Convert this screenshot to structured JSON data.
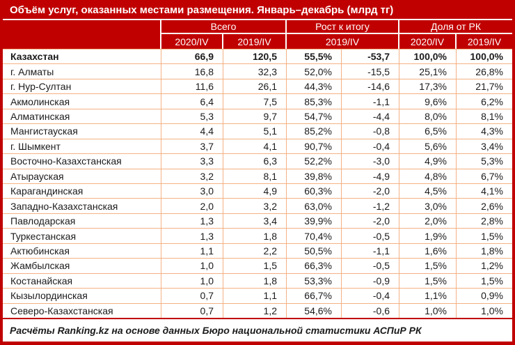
{
  "title": "Объём услуг, оказанных местами размещения. Январь–декабрь (млрд тг)",
  "header": {
    "corner": "",
    "groups": [
      {
        "label": "Всего",
        "sub": [
          "2020/IV",
          "2019/IV"
        ]
      },
      {
        "label": "Рост к итогу",
        "sub": [
          "2019/IV"
        ]
      },
      {
        "label": "Доля от РК",
        "sub": [
          "2020/IV",
          "2019/IV"
        ]
      }
    ]
  },
  "chart_data": {
    "type": "table",
    "title": "Объём услуг, оказанных местами размещения. Январь–декабрь (млрд тг)",
    "columns": [
      "Регион",
      "Всего 2020/IV",
      "Всего 2019/IV",
      "Рост к итогу 2019/IV, %",
      "Рост к итогу 2019/IV, млрд тг",
      "Доля от РК 2020/IV",
      "Доля от РК 2019/IV"
    ],
    "rows": [
      {
        "region": "Казахстан",
        "bold": true,
        "values": [
          "66,9",
          "120,5",
          "55,5%",
          "-53,7",
          "100,0%",
          "100,0%"
        ]
      },
      {
        "region": "г. Алматы",
        "bold": false,
        "values": [
          "16,8",
          "32,3",
          "52,0%",
          "-15,5",
          "25,1%",
          "26,8%"
        ]
      },
      {
        "region": "г. Нур-Султан",
        "bold": false,
        "values": [
          "11,6",
          "26,1",
          "44,3%",
          "-14,6",
          "17,3%",
          "21,7%"
        ]
      },
      {
        "region": "Акмолинская",
        "bold": false,
        "values": [
          "6,4",
          "7,5",
          "85,3%",
          "-1,1",
          "9,6%",
          "6,2%"
        ]
      },
      {
        "region": "Алматинская",
        "bold": false,
        "values": [
          "5,3",
          "9,7",
          "54,7%",
          "-4,4",
          "8,0%",
          "8,1%"
        ]
      },
      {
        "region": "Мангистауская",
        "bold": false,
        "values": [
          "4,4",
          "5,1",
          "85,2%",
          "-0,8",
          "6,5%",
          "4,3%"
        ]
      },
      {
        "region": "г. Шымкент",
        "bold": false,
        "values": [
          "3,7",
          "4,1",
          "90,7%",
          "-0,4",
          "5,6%",
          "3,4%"
        ]
      },
      {
        "region": "Восточно-Казахстанская",
        "bold": false,
        "values": [
          "3,3",
          "6,3",
          "52,2%",
          "-3,0",
          "4,9%",
          "5,3%"
        ]
      },
      {
        "region": "Атырауская",
        "bold": false,
        "values": [
          "3,2",
          "8,1",
          "39,8%",
          "-4,9",
          "4,8%",
          "6,7%"
        ]
      },
      {
        "region": "Карагандинская",
        "bold": false,
        "values": [
          "3,0",
          "4,9",
          "60,3%",
          "-2,0",
          "4,5%",
          "4,1%"
        ]
      },
      {
        "region": "Западно-Казахстанская",
        "bold": false,
        "values": [
          "2,0",
          "3,2",
          "63,0%",
          "-1,2",
          "3,0%",
          "2,6%"
        ]
      },
      {
        "region": "Павлодарская",
        "bold": false,
        "values": [
          "1,3",
          "3,4",
          "39,9%",
          "-2,0",
          "2,0%",
          "2,8%"
        ]
      },
      {
        "region": "Туркестанская",
        "bold": false,
        "values": [
          "1,3",
          "1,8",
          "70,4%",
          "-0,5",
          "1,9%",
          "1,5%"
        ]
      },
      {
        "region": "Актюбинская",
        "bold": false,
        "values": [
          "1,1",
          "2,2",
          "50,5%",
          "-1,1",
          "1,6%",
          "1,8%"
        ]
      },
      {
        "region": "Жамбылская",
        "bold": false,
        "values": [
          "1,0",
          "1,5",
          "66,3%",
          "-0,5",
          "1,5%",
          "1,2%"
        ]
      },
      {
        "region": "Костанайская",
        "bold": false,
        "values": [
          "1,0",
          "1,8",
          "53,3%",
          "-0,9",
          "1,5%",
          "1,5%"
        ]
      },
      {
        "region": "Кызылординская",
        "bold": false,
        "values": [
          "0,7",
          "1,1",
          "66,7%",
          "-0,4",
          "1,1%",
          "0,9%"
        ]
      },
      {
        "region": "Северо-Казахстанская",
        "bold": false,
        "values": [
          "0,7",
          "1,2",
          "54,6%",
          "-0,6",
          "1,0%",
          "1,0%"
        ]
      }
    ]
  },
  "footer": {
    "text": "Расчёты Ranking.kz на основе данных Бюро национальной статистики АСПиР РК"
  },
  "colors": {
    "accent_red": "#C00000",
    "grid_orange": "#F4B183",
    "text": "#1B1B1B",
    "header_text": "#FFFFFF"
  }
}
